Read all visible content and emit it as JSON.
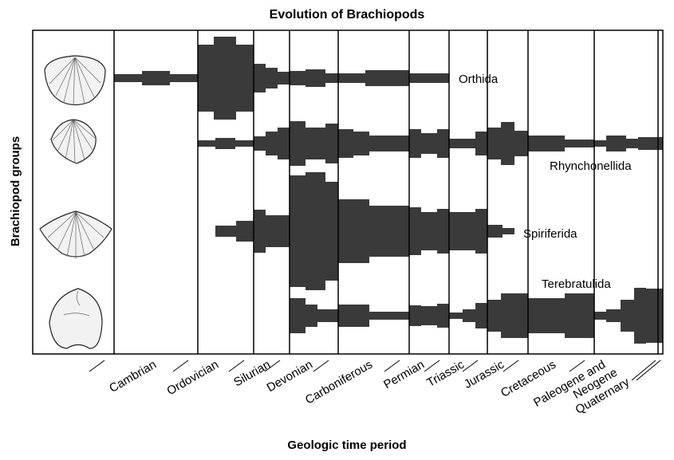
{
  "title": "Evolution of Brachiopods",
  "x_axis_label": "Geologic time period",
  "y_axis_label": "Brachiopod groups",
  "periods": [
    "Cambrian",
    "Ordovician",
    "Silurian",
    "Devonian",
    "Carboniferous",
    "Permian",
    "Triassic",
    "Jurassic",
    "Cretaceous",
    [
      "Paleogene and",
      "Neogene"
    ],
    "Quaternary"
  ],
  "groups": [
    "Orthida",
    "Rhynchonellida",
    "Spiriferida",
    "Terebratulida"
  ]
}
